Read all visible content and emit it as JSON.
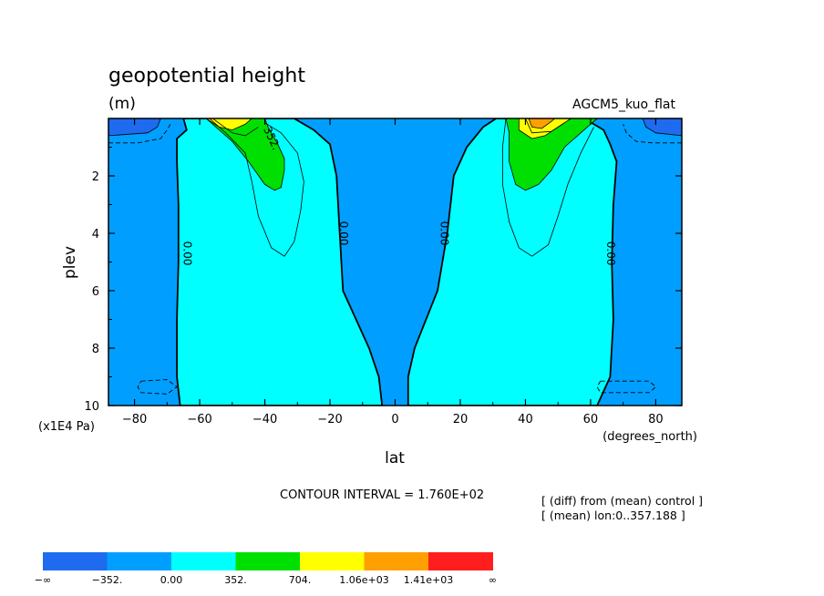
{
  "chart_data": {
    "type": "contour",
    "title": "geopotential height",
    "units": "(m)",
    "run_label": "AGCM5_kuo_flat",
    "xlabel": "lat",
    "x_units": "(degrees_north)",
    "ylabel": "plev",
    "y_units": "(x1E4 Pa)",
    "xlim": [
      -88,
      88
    ],
    "ylim": [
      10,
      0
    ],
    "y_reversed": true,
    "x_ticks": [
      -80,
      -60,
      -40,
      -20,
      0,
      20,
      40,
      60,
      80
    ],
    "x_tick_labels": [
      "−80",
      "−60",
      "−40",
      "−20",
      "0",
      "20",
      "40",
      "60",
      "80"
    ],
    "y_ticks": [
      2,
      4,
      6,
      8,
      10
    ],
    "y_tick_labels": [
      "2",
      "4",
      "6",
      "8",
      "10"
    ],
    "contour_interval_text": "CONTOUR INTERVAL = 1.760E+02",
    "notes": [
      "[ (diff) from (mean) control ]",
      "[ (mean) lon:0..357.188 ]"
    ],
    "contour_labels": [
      {
        "text": "0.00",
        "lat": -64,
        "plev": 4.7
      },
      {
        "text": "0.00",
        "lat": -16,
        "plev": 4.0
      },
      {
        "text": "0.00",
        "lat": 15,
        "plev": 4.0
      },
      {
        "text": "0.00",
        "lat": 66,
        "plev": 4.7
      },
      {
        "text": "352.",
        "lat": -38,
        "plev": 0.7
      }
    ],
    "levels": [
      -352,
      0,
      352,
      704,
      1056,
      1408
    ],
    "colorbar": {
      "labels": [
        "−∞",
        "−352.",
        "0.00",
        "352.",
        "704.",
        "1.06e+03",
        "1.41e+03",
        "∞"
      ],
      "colors": [
        "#1e6bf0",
        "#009fff",
        "#00ffff",
        "#00e000",
        "#ffff00",
        "#ffa000",
        "#ff1e1e"
      ]
    },
    "fill_colors": {
      "neg_deep": "#1e6bf0",
      "neg": "#009fff",
      "pos_low": "#00ffff",
      "green": "#00e000",
      "yellow": "#ffff00",
      "orange": "#ffa000"
    },
    "regions": [
      {
        "level": "pos_low",
        "polygon": [
          [
            -66,
            10
          ],
          [
            -67,
            9
          ],
          [
            -67,
            7
          ],
          [
            -66.5,
            5
          ],
          [
            -66.5,
            3
          ],
          [
            -67,
            1.5
          ],
          [
            -67,
            0.7
          ],
          [
            -64,
            0.4
          ],
          [
            -65,
            0
          ],
          [
            -58,
            0
          ],
          [
            -42,
            0
          ],
          [
            -31,
            0
          ],
          [
            -25,
            0.4
          ],
          [
            -20,
            0.9
          ],
          [
            -18,
            2
          ],
          [
            -17,
            4
          ],
          [
            -16,
            6
          ],
          [
            -8,
            8
          ],
          [
            -5,
            9
          ],
          [
            -4,
            10
          ]
        ]
      },
      {
        "level": "pos_low",
        "polygon": [
          [
            4,
            10
          ],
          [
            4,
            9
          ],
          [
            6,
            8
          ],
          [
            13,
            6
          ],
          [
            16,
            4
          ],
          [
            18,
            2
          ],
          [
            22,
            1
          ],
          [
            27,
            0.3
          ],
          [
            31,
            0
          ],
          [
            42,
            0
          ],
          [
            58,
            0
          ],
          [
            64,
            0.4
          ],
          [
            66,
            0.9
          ],
          [
            68,
            1.5
          ],
          [
            67,
            3
          ],
          [
            66.5,
            5
          ],
          [
            67,
            7
          ],
          [
            66,
            9
          ],
          [
            62,
            10
          ]
        ]
      },
      {
        "level": "green",
        "polygon": [
          [
            -58,
            0
          ],
          [
            -55,
            0.3
          ],
          [
            -50,
            0.8
          ],
          [
            -45,
            1.5
          ],
          [
            -40,
            2.3
          ],
          [
            -37,
            2.5
          ],
          [
            -35,
            2.4
          ],
          [
            -34,
            1.8
          ],
          [
            -34,
            1.4
          ],
          [
            -36,
            0.9
          ],
          [
            -39,
            0.3
          ],
          [
            -40,
            0
          ]
        ]
      },
      {
        "level": "green",
        "polygon": [
          [
            34,
            0
          ],
          [
            35,
            0.5
          ],
          [
            35,
            1.5
          ],
          [
            37,
            2.3
          ],
          [
            40,
            2.5
          ],
          [
            44,
            2.3
          ],
          [
            48,
            1.8
          ],
          [
            52,
            1.0
          ],
          [
            56,
            0.6
          ],
          [
            60,
            0.2
          ],
          [
            62,
            0
          ]
        ]
      },
      {
        "level": "yellow",
        "polygon": [
          [
            -58,
            0
          ],
          [
            -54,
            0.3
          ],
          [
            -50,
            0.4
          ],
          [
            -46,
            0.2
          ],
          [
            -44,
            0
          ]
        ]
      },
      {
        "level": "yellow",
        "polygon": [
          [
            38,
            0
          ],
          [
            38,
            0.4
          ],
          [
            42,
            0.7
          ],
          [
            46,
            0.6
          ],
          [
            50,
            0.3
          ],
          [
            54,
            0
          ]
        ]
      },
      {
        "level": "orange",
        "polygon": [
          [
            41,
            0
          ],
          [
            42,
            0.3
          ],
          [
            45,
            0.35
          ],
          [
            48,
            0.1
          ],
          [
            49,
            0
          ]
        ]
      },
      {
        "level": "neg_deep",
        "polygon": [
          [
            -88,
            0
          ],
          [
            -72,
            0
          ],
          [
            -73,
            0.3
          ],
          [
            -76,
            0.5
          ],
          [
            -88,
            0.6
          ]
        ]
      },
      {
        "level": "neg_deep",
        "polygon": [
          [
            88,
            0
          ],
          [
            76,
            0
          ],
          [
            77,
            0.3
          ],
          [
            80,
            0.5
          ],
          [
            88,
            0.6
          ]
        ]
      }
    ],
    "thin_lines": [
      [
        [
          -57,
          0
        ],
        [
          -52,
          0.5
        ],
        [
          -46,
          1.2
        ],
        [
          -44,
          2.2
        ],
        [
          -42,
          3.4
        ],
        [
          -38,
          4.5
        ],
        [
          -34,
          4.8
        ],
        [
          -31,
          4.3
        ],
        [
          -29,
          3.2
        ],
        [
          -28,
          2.2
        ],
        [
          -30,
          1.2
        ],
        [
          -35,
          0.5
        ],
        [
          -40,
          0.15
        ]
      ],
      [
        [
          34,
          0
        ],
        [
          33,
          1.0
        ],
        [
          33,
          2.3
        ],
        [
          35,
          3.6
        ],
        [
          38,
          4.5
        ],
        [
          42,
          4.8
        ],
        [
          47,
          4.4
        ],
        [
          50,
          3.4
        ],
        [
          53,
          2.3
        ],
        [
          57,
          1.2
        ],
        [
          61,
          0.3
        ]
      ],
      [
        [
          -56,
          0
        ],
        [
          -50,
          0.5
        ],
        [
          -46,
          0.6
        ],
        [
          -42,
          0.3
        ]
      ],
      [
        [
          40,
          0
        ],
        [
          42,
          0.5
        ],
        [
          48,
          0.45
        ],
        [
          52,
          0.15
        ]
      ]
    ],
    "dashed_lines": [
      [
        [
          -88,
          0.85
        ],
        [
          -79,
          0.85
        ],
        [
          -72,
          0.7
        ],
        [
          -70,
          0.4
        ],
        [
          -69,
          0.2
        ]
      ],
      [
        [
          88,
          0.85
        ],
        [
          79,
          0.85
        ],
        [
          74,
          0.8
        ],
        [
          71,
          0.5
        ],
        [
          70,
          0.2
        ]
      ],
      [
        [
          -78,
          9.15
        ],
        [
          -70,
          9.1
        ],
        [
          -67,
          9.35
        ],
        [
          -70,
          9.6
        ],
        [
          -78,
          9.55
        ],
        [
          -79,
          9.35
        ],
        [
          -78,
          9.15
        ]
      ],
      [
        [
          63,
          9.15
        ],
        [
          78,
          9.15
        ],
        [
          80,
          9.35
        ],
        [
          78,
          9.55
        ],
        [
          63,
          9.55
        ],
        [
          62,
          9.35
        ],
        [
          63,
          9.15
        ]
      ]
    ]
  }
}
